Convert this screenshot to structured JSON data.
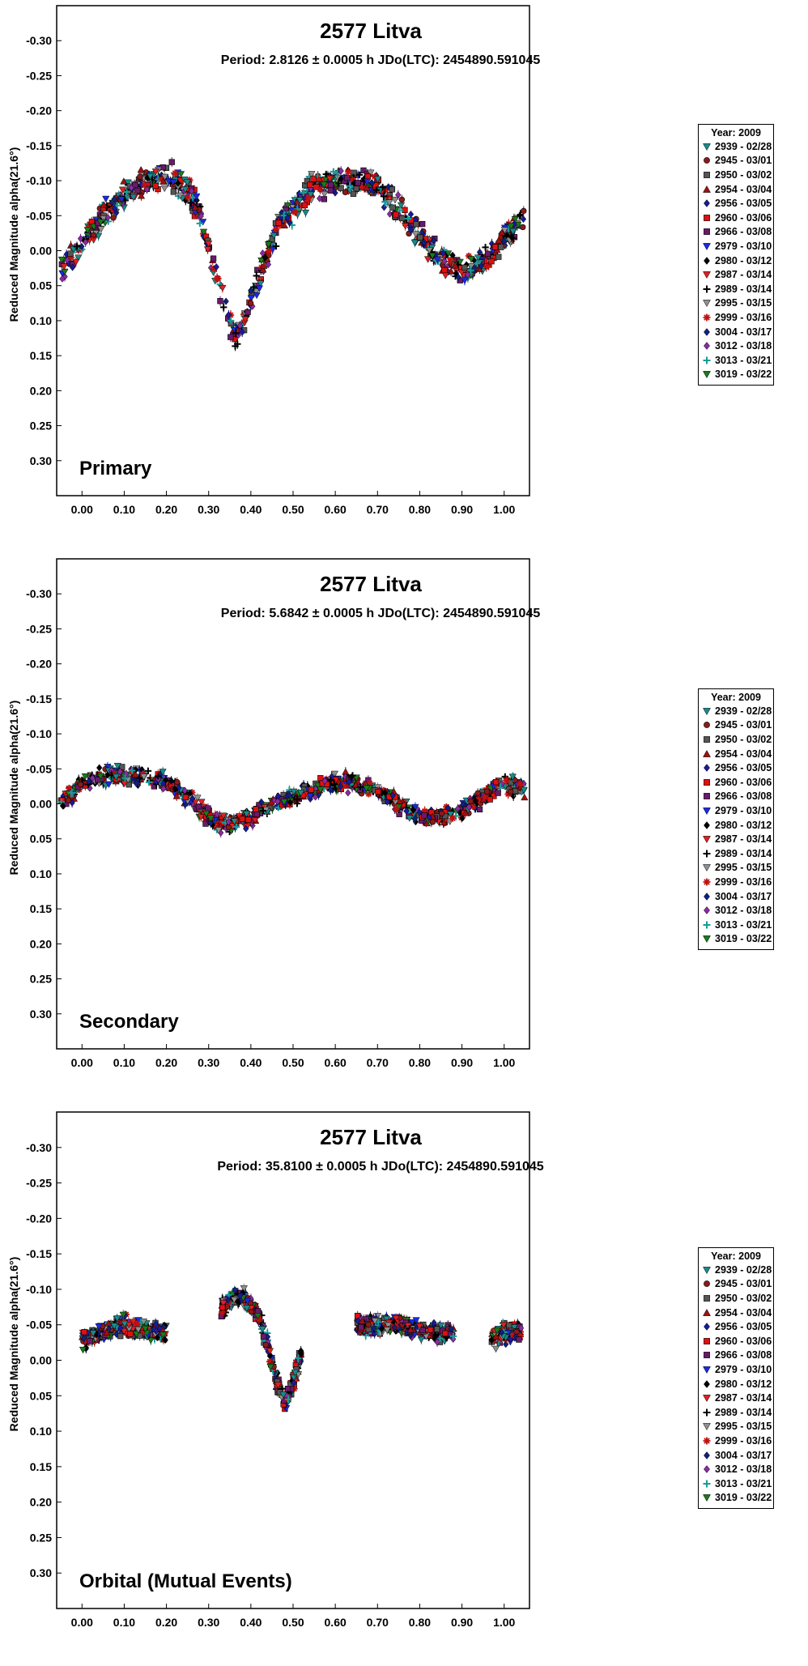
{
  "legend": {
    "title": "Year: 2009",
    "entries": [
      {
        "label": "2939 - 02/28",
        "color": "#1a8a8a",
        "marker": "tri-down"
      },
      {
        "label": "2945 - 03/01",
        "color": "#8b1a1a",
        "marker": "circle"
      },
      {
        "label": "2950 - 03/02",
        "color": "#555555",
        "marker": "square-dark"
      },
      {
        "label": "2954 - 03/04",
        "color": "#a01010",
        "marker": "tri-up"
      },
      {
        "label": "2956 - 03/05",
        "color": "#1a1a9a",
        "marker": "diamond"
      },
      {
        "label": "2960 - 03/06",
        "color": "#e01010",
        "marker": "square"
      },
      {
        "label": "2966 - 03/08",
        "color": "#6a1a6a",
        "marker": "square-dark"
      },
      {
        "label": "2979 - 03/10",
        "color": "#1a2ae0",
        "marker": "tri-down"
      },
      {
        "label": "2980 - 03/12",
        "color": "#000000",
        "marker": "diamond"
      },
      {
        "label": "2987 - 03/14",
        "color": "#e02020",
        "marker": "tri-down"
      },
      {
        "label": "2989 - 03/14",
        "color": "#000000",
        "marker": "plus"
      },
      {
        "label": "2995 - 03/15",
        "color": "#909090",
        "marker": "tri-down"
      },
      {
        "label": "2999 - 03/16",
        "color": "#c01010",
        "marker": "star"
      },
      {
        "label": "3004 - 03/17",
        "color": "#102080",
        "marker": "diamond"
      },
      {
        "label": "3012 - 03/18",
        "color": "#8a2aa0",
        "marker": "diamond"
      },
      {
        "label": "3013 - 03/21",
        "color": "#1a9a9a",
        "marker": "plus"
      },
      {
        "label": "3019 - 03/22",
        "color": "#1a7a1a",
        "marker": "tri-down"
      }
    ]
  },
  "chart_data": [
    {
      "type": "scatter",
      "title": "2577 Litva",
      "subtitle": "Period: 2.8126 ± 0.0005 h      JDo(LTC): 2454890.591045",
      "panel_label": "Primary",
      "ylabel": "Reduced Magnitude alpha(21.6°)",
      "xlim": [
        -0.06,
        1.06
      ],
      "ylim": [
        0.35,
        -0.35
      ],
      "y_inverted": true,
      "xticks": [
        "0.00",
        "0.10",
        "0.20",
        "0.30",
        "0.40",
        "0.50",
        "0.60",
        "0.70",
        "0.80",
        "0.90",
        "1.00"
      ],
      "yticks": [
        "-0.30",
        "-0.25",
        "-0.20",
        "-0.15",
        "-0.10",
        "-0.05",
        "0.00",
        "0.05",
        "0.10",
        "0.15",
        "0.20",
        "0.25",
        "0.30"
      ],
      "curve": {
        "phase": [
          -0.05,
          0.0,
          0.05,
          0.1,
          0.15,
          0.2,
          0.25,
          0.28,
          0.31,
          0.34,
          0.36,
          0.38,
          0.4,
          0.43,
          0.46,
          0.5,
          0.55,
          0.6,
          0.65,
          0.7,
          0.75,
          0.8,
          0.85,
          0.9,
          0.95,
          1.0,
          1.05
        ],
        "mag": [
          0.03,
          -0.01,
          -0.05,
          -0.08,
          -0.1,
          -0.11,
          -0.09,
          -0.05,
          0.02,
          0.08,
          0.12,
          0.11,
          0.07,
          0.02,
          -0.03,
          -0.06,
          -0.09,
          -0.1,
          -0.1,
          -0.09,
          -0.06,
          -0.02,
          0.01,
          0.03,
          0.02,
          -0.02,
          -0.05
        ]
      },
      "scatter_spread": 0.045
    },
    {
      "type": "scatter",
      "title": "2577 Litva",
      "subtitle": "Period: 5.6842 ± 0.0005 h      JDo(LTC): 2454890.591045",
      "panel_label": "Secondary",
      "ylabel": "Reduced Magnitude alpha(21.6°)",
      "xlim": [
        -0.06,
        1.06
      ],
      "ylim": [
        0.35,
        -0.35
      ],
      "y_inverted": true,
      "xticks": [
        "0.00",
        "0.10",
        "0.20",
        "0.30",
        "0.40",
        "0.50",
        "0.60",
        "0.70",
        "0.80",
        "0.90",
        "1.00"
      ],
      "yticks": [
        "-0.30",
        "-0.25",
        "-0.20",
        "-0.15",
        "-0.10",
        "-0.05",
        "0.00",
        "0.05",
        "0.10",
        "0.15",
        "0.20",
        "0.25",
        "0.30"
      ],
      "curve": {
        "phase": [
          -0.05,
          0.0,
          0.05,
          0.1,
          0.15,
          0.2,
          0.25,
          0.3,
          0.35,
          0.4,
          0.45,
          0.5,
          0.55,
          0.6,
          0.65,
          0.7,
          0.75,
          0.8,
          0.85,
          0.9,
          0.95,
          1.0,
          1.05
        ],
        "mag": [
          0.0,
          -0.03,
          -0.04,
          -0.04,
          -0.04,
          -0.03,
          -0.01,
          0.02,
          0.03,
          0.02,
          0.0,
          -0.01,
          -0.02,
          -0.03,
          -0.03,
          -0.02,
          0.0,
          0.02,
          0.02,
          0.01,
          -0.01,
          -0.03,
          -0.02
        ]
      },
      "scatter_spread": 0.03
    },
    {
      "type": "scatter",
      "title": "2577 Litva",
      "subtitle": "Period: 35.8100 ± 0.0005 h      JDo(LTC): 2454890.591045",
      "panel_label": "Orbital (Mutual Events)",
      "ylabel": "Reduced Magnitude alpha(21.6°)",
      "xlim": [
        -0.06,
        1.06
      ],
      "ylim": [
        0.35,
        -0.35
      ],
      "y_inverted": true,
      "xticks": [
        "0.00",
        "0.10",
        "0.20",
        "0.30",
        "0.40",
        "0.50",
        "0.60",
        "0.70",
        "0.80",
        "0.90",
        "1.00"
      ],
      "yticks": [
        "-0.30",
        "-0.25",
        "-0.20",
        "-0.15",
        "-0.10",
        "-0.05",
        "0.00",
        "0.05",
        "0.10",
        "0.15",
        "0.20",
        "0.25",
        "0.30"
      ],
      "segments": [
        {
          "phase": [
            0.0,
            0.05,
            0.1,
            0.15,
            0.2
          ],
          "mag": [
            -0.03,
            -0.04,
            -0.05,
            -0.04,
            -0.04
          ]
        },
        {
          "phase": [
            0.33,
            0.36,
            0.38,
            0.4,
            0.42,
            0.44,
            0.46,
            0.48,
            0.5,
            0.52
          ],
          "mag": [
            -0.07,
            -0.09,
            -0.09,
            -0.08,
            -0.06,
            -0.02,
            0.03,
            0.06,
            0.03,
            -0.01
          ]
        },
        {
          "phase": [
            0.65,
            0.7,
            0.75,
            0.8,
            0.85,
            0.88
          ],
          "mag": [
            -0.05,
            -0.05,
            -0.05,
            -0.04,
            -0.04,
            -0.04
          ]
        },
        {
          "phase": [
            0.97,
            1.0,
            1.04
          ],
          "mag": [
            -0.03,
            -0.04,
            -0.04
          ]
        }
      ],
      "scatter_spread": 0.03
    }
  ]
}
